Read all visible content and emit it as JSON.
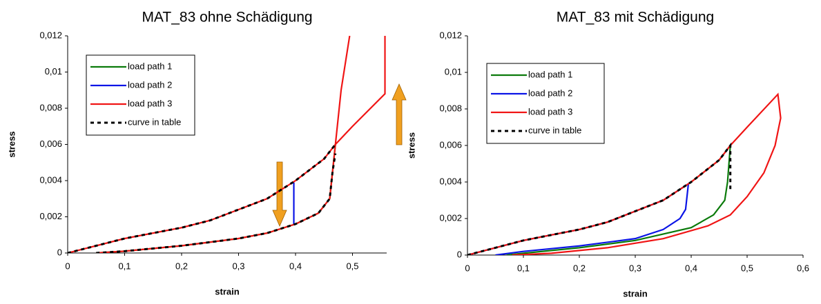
{
  "chart_data": [
    {
      "type": "line",
      "title": "MAT_83 ohne Schädigung",
      "x_label": "strain",
      "y_label": "stress",
      "legend": "upper left",
      "xlim": [
        0,
        0.56
      ],
      "ylim": [
        0,
        0.012
      ],
      "xticks": [
        0,
        {
          "value": 0.1,
          "label": "0,1"
        },
        {
          "value": 0.2,
          "label": "0,2"
        },
        {
          "value": 0.3,
          "label": "0,3"
        },
        {
          "value": 0.4,
          "label": "0,4"
        },
        {
          "value": 0.5,
          "label": "0,5"
        }
      ],
      "yticks": [
        0,
        {
          "value": 0.002,
          "label": "0,002"
        },
        {
          "value": 0.004,
          "label": "0,004"
        },
        {
          "value": 0.006,
          "label": "0,006"
        },
        {
          "value": 0.008,
          "label": "0,008"
        },
        {
          "value": 0.01,
          "label": "0,01"
        },
        {
          "value": 0.012,
          "label": "0,012"
        }
      ],
      "series": [
        {
          "name": "load path 1",
          "color": "#0a7a0a",
          "x": [
            0.05,
            0.1,
            0.2,
            0.3,
            0.35,
            0.4,
            0.44,
            0.46,
            0.465,
            0.47
          ],
          "values": [
            0,
            0.0001,
            0.0004,
            0.0008,
            0.0011,
            0.0016,
            0.0022,
            0.003,
            0.0045,
            0.006
          ]
        },
        {
          "name": "load path 2",
          "color": "#0a14e6",
          "x": [
            0.397,
            0.397
          ],
          "values": [
            0.0016,
            0.0039
          ]
        },
        {
          "name": "load path 3",
          "color": "#f01414",
          "x": [
            0,
            0.05,
            0.1,
            0.15,
            0.2,
            0.25,
            0.3,
            0.35,
            0.4,
            0.45,
            0.47,
            0.5,
            0.557,
            0.557,
            null,
            0.05,
            0.1,
            0.2,
            0.3,
            0.35,
            0.4,
            0.44,
            0.46,
            0.465,
            0.47,
            0.48,
            0.495
          ],
          "values": [
            0,
            0.0004,
            0.0008,
            0.0011,
            0.0014,
            0.0018,
            0.0024,
            0.003,
            0.004,
            0.0052,
            0.006,
            0.007,
            0.0088,
            0.012,
            null,
            0,
            0.0001,
            0.0004,
            0.0008,
            0.0011,
            0.0016,
            0.0022,
            0.003,
            0.0045,
            0.006,
            0.009,
            0.012
          ]
        },
        {
          "name": "curve in table",
          "color": "#000000",
          "dashes": true,
          "x": [
            0,
            0.05,
            0.1,
            0.15,
            0.2,
            0.25,
            0.3,
            0.35,
            0.4,
            0.45,
            0.47,
            null,
            0.05,
            0.1,
            0.2,
            0.3,
            0.35,
            0.4,
            0.44,
            0.46,
            0.465,
            0.47
          ],
          "values": [
            0,
            0.0004,
            0.0008,
            0.0011,
            0.0014,
            0.0018,
            0.0024,
            0.003,
            0.004,
            0.0052,
            0.006,
            null,
            0,
            0.0001,
            0.0004,
            0.0008,
            0.0011,
            0.0016,
            0.0022,
            0.003,
            0.0045,
            0.0055
          ]
        }
      ]
    },
    {
      "type": "line",
      "title": "MAT_83 mit Schädigung",
      "x_label": "strain",
      "y_label": "stress",
      "legend": "upper left",
      "xlim": [
        0,
        0.6
      ],
      "ylim": [
        0,
        0.012
      ],
      "xticks": [
        0,
        {
          "value": 0.1,
          "label": "0,1"
        },
        {
          "value": 0.2,
          "label": "0,2"
        },
        {
          "value": 0.3,
          "label": "0,3"
        },
        {
          "value": 0.4,
          "label": "0,4"
        },
        {
          "value": 0.5,
          "label": "0,5"
        },
        {
          "value": 0.6,
          "label": "0,6"
        }
      ],
      "yticks": [
        0,
        {
          "value": 0.002,
          "label": "0,002"
        },
        {
          "value": 0.004,
          "label": "0,004"
        },
        {
          "value": 0.006,
          "label": "0,006"
        },
        {
          "value": 0.008,
          "label": "0,008"
        },
        {
          "value": 0.01,
          "label": "0,01"
        },
        {
          "value": 0.012,
          "label": "0,012"
        }
      ],
      "series": [
        {
          "name": "load path 1",
          "color": "#0a7a0a",
          "x": [
            0,
            0.05,
            0.1,
            0.15,
            0.2,
            0.25,
            0.3,
            0.35,
            0.4,
            0.45,
            0.47,
            0.465,
            0.46,
            0.44,
            0.4,
            0.3,
            0.2,
            0.1,
            0.07
          ],
          "values": [
            0,
            0.0004,
            0.0008,
            0.0011,
            0.0014,
            0.0018,
            0.0024,
            0.003,
            0.004,
            0.0052,
            0.006,
            0.004,
            0.003,
            0.0022,
            0.0015,
            0.0008,
            0.0004,
            0.0001,
            0
          ]
        },
        {
          "name": "load path 2",
          "color": "#0a14e6",
          "x": [
            0,
            0.05,
            0.1,
            0.15,
            0.2,
            0.25,
            0.3,
            0.35,
            0.395,
            0.39,
            0.38,
            0.35,
            0.3,
            0.2,
            0.1,
            0.05
          ],
          "values": [
            0,
            0.0004,
            0.0008,
            0.0011,
            0.0014,
            0.0018,
            0.0024,
            0.003,
            0.0039,
            0.0025,
            0.002,
            0.0014,
            0.0009,
            0.0005,
            0.0002,
            0
          ]
        },
        {
          "name": "load path 3",
          "color": "#f01414",
          "x": [
            0,
            0.05,
            0.1,
            0.15,
            0.2,
            0.25,
            0.3,
            0.35,
            0.4,
            0.45,
            0.47,
            0.5,
            0.555,
            0.56,
            0.55,
            0.53,
            0.5,
            0.47,
            0.43,
            0.35,
            0.25,
            0.15,
            0.08
          ],
          "values": [
            0,
            0.0004,
            0.0008,
            0.0011,
            0.0014,
            0.0018,
            0.0024,
            0.003,
            0.004,
            0.0052,
            0.006,
            0.007,
            0.0088,
            0.0075,
            0.006,
            0.0045,
            0.0032,
            0.0022,
            0.0016,
            0.0009,
            0.0004,
            0.0001,
            0
          ]
        },
        {
          "name": "curve in table",
          "color": "#000000",
          "dashes": true,
          "x": [
            0,
            0.05,
            0.1,
            0.15,
            0.2,
            0.25,
            0.3,
            0.35,
            0.4,
            0.45,
            0.47,
            0.47
          ],
          "values": [
            0,
            0.0004,
            0.0008,
            0.0011,
            0.0014,
            0.0018,
            0.0024,
            0.003,
            0.004,
            0.0052,
            0.006,
            0.0035
          ]
        }
      ]
    }
  ]
}
